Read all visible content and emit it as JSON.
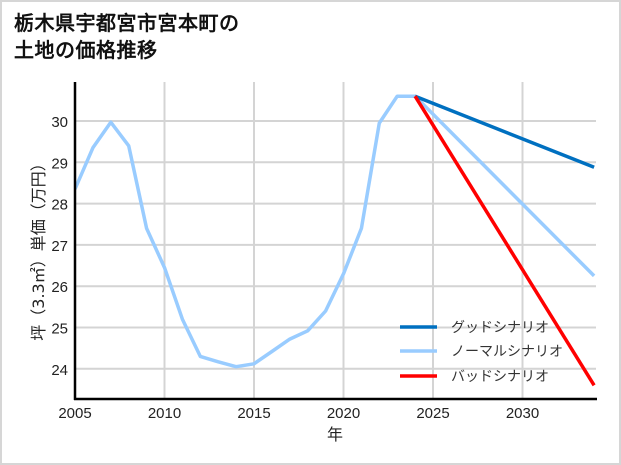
{
  "chart_data": {
    "type": "line",
    "title": "栃木県宇都宮市宮本町の土地の価格推移",
    "title_lines": [
      "栃木県宇都宮市宮本町の",
      "土地の価格推移"
    ],
    "xlabel": "年",
    "ylabel": "坪（3.3㎡）単価（万円）",
    "xlim": [
      2005,
      2034
    ],
    "ylim": [
      23.3,
      31.3
    ],
    "x_ticks": [
      2005,
      2010,
      2015,
      2020,
      2025,
      2030
    ],
    "y_ticks": [
      24,
      25,
      26,
      27,
      28,
      29,
      30
    ],
    "grid": true,
    "legend_position": "lower right",
    "series": [
      {
        "name": "グッドシナリオ",
        "color": "#0070c0",
        "x": [
          2024,
          2034
        ],
        "values": [
          30.6,
          28.88
        ]
      },
      {
        "name": "ノーマルシナリオ",
        "color": "#99ccff",
        "x": [
          2005,
          2006,
          2007,
          2008,
          2009,
          2010,
          2011,
          2012,
          2013,
          2014,
          2015,
          2016,
          2017,
          2018,
          2019,
          2020,
          2021,
          2022,
          2023,
          2024,
          2034
        ],
        "values": [
          28.35,
          29.35,
          29.97,
          29.4,
          27.4,
          26.45,
          25.2,
          24.3,
          24.17,
          24.05,
          24.12,
          24.42,
          24.72,
          24.92,
          25.4,
          26.3,
          27.4,
          29.95,
          30.6,
          30.6,
          26.25
        ]
      },
      {
        "name": "バッドシナリオ",
        "color": "#ff0000",
        "x": [
          2024,
          2034
        ],
        "values": [
          30.6,
          23.6
        ]
      }
    ]
  }
}
